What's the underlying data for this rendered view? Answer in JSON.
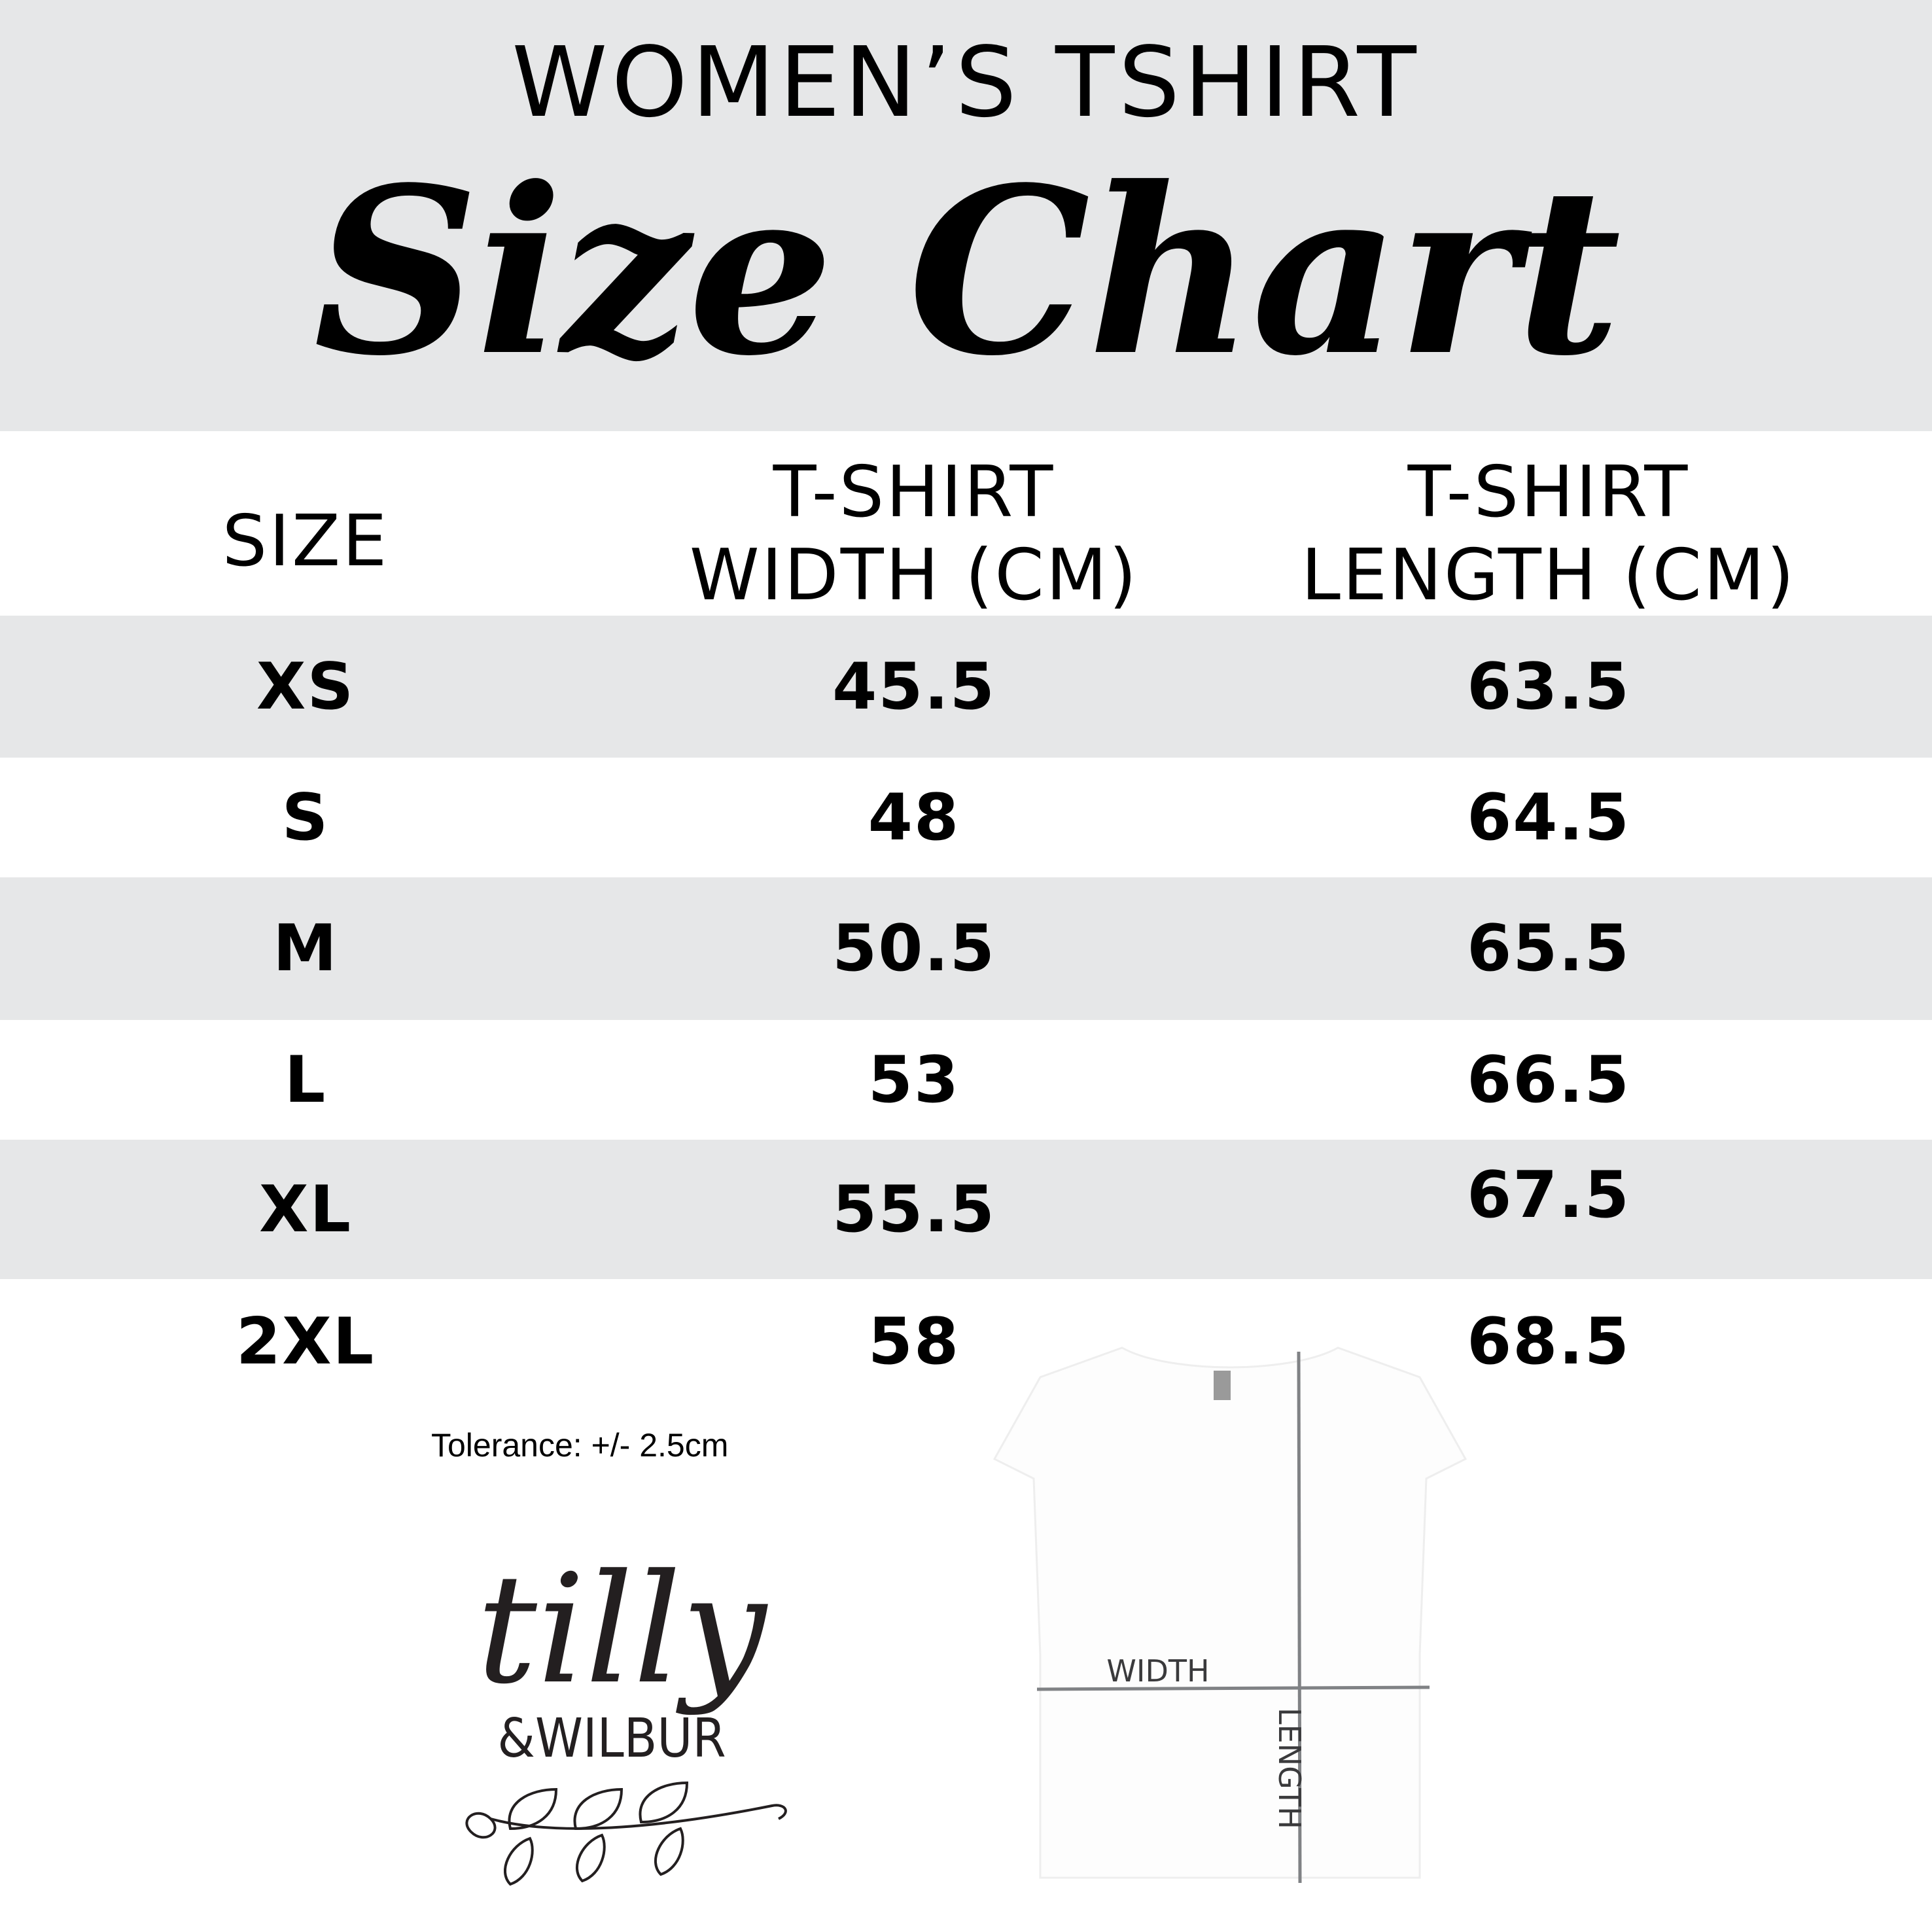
{
  "header": {
    "title": "WOMEN’S TSHIRT",
    "subtitle": "Size Chart",
    "background": "#e6e7e8"
  },
  "table": {
    "columns": [
      {
        "line1": "SIZE",
        "line2": ""
      },
      {
        "line1": "T-SHIRT",
        "line2": "WIDTH (CM)"
      },
      {
        "line1": "T-SHIRT",
        "line2": "LENGTH (CM)"
      }
    ],
    "rows": [
      {
        "size": "XS",
        "width": "45.5",
        "length": "63.5"
      },
      {
        "size": "S",
        "width": "48",
        "length": "64.5"
      },
      {
        "size": "M",
        "width": "50.5",
        "length": "65.5"
      },
      {
        "size": "L",
        "width": "53",
        "length": "66.5"
      },
      {
        "size": "XL",
        "width": "55.5",
        "length": "67.5"
      },
      {
        "size": "2XL",
        "width": "58",
        "length": "68.5"
      }
    ]
  },
  "tolerance": "Tolerance: +/- 2.5cm",
  "logo": {
    "line1": "tilly",
    "line2": "&WILBUR"
  },
  "diagram": {
    "width_label": "WIDTH",
    "length_label": "LENGTH",
    "line_color": "#808285"
  }
}
